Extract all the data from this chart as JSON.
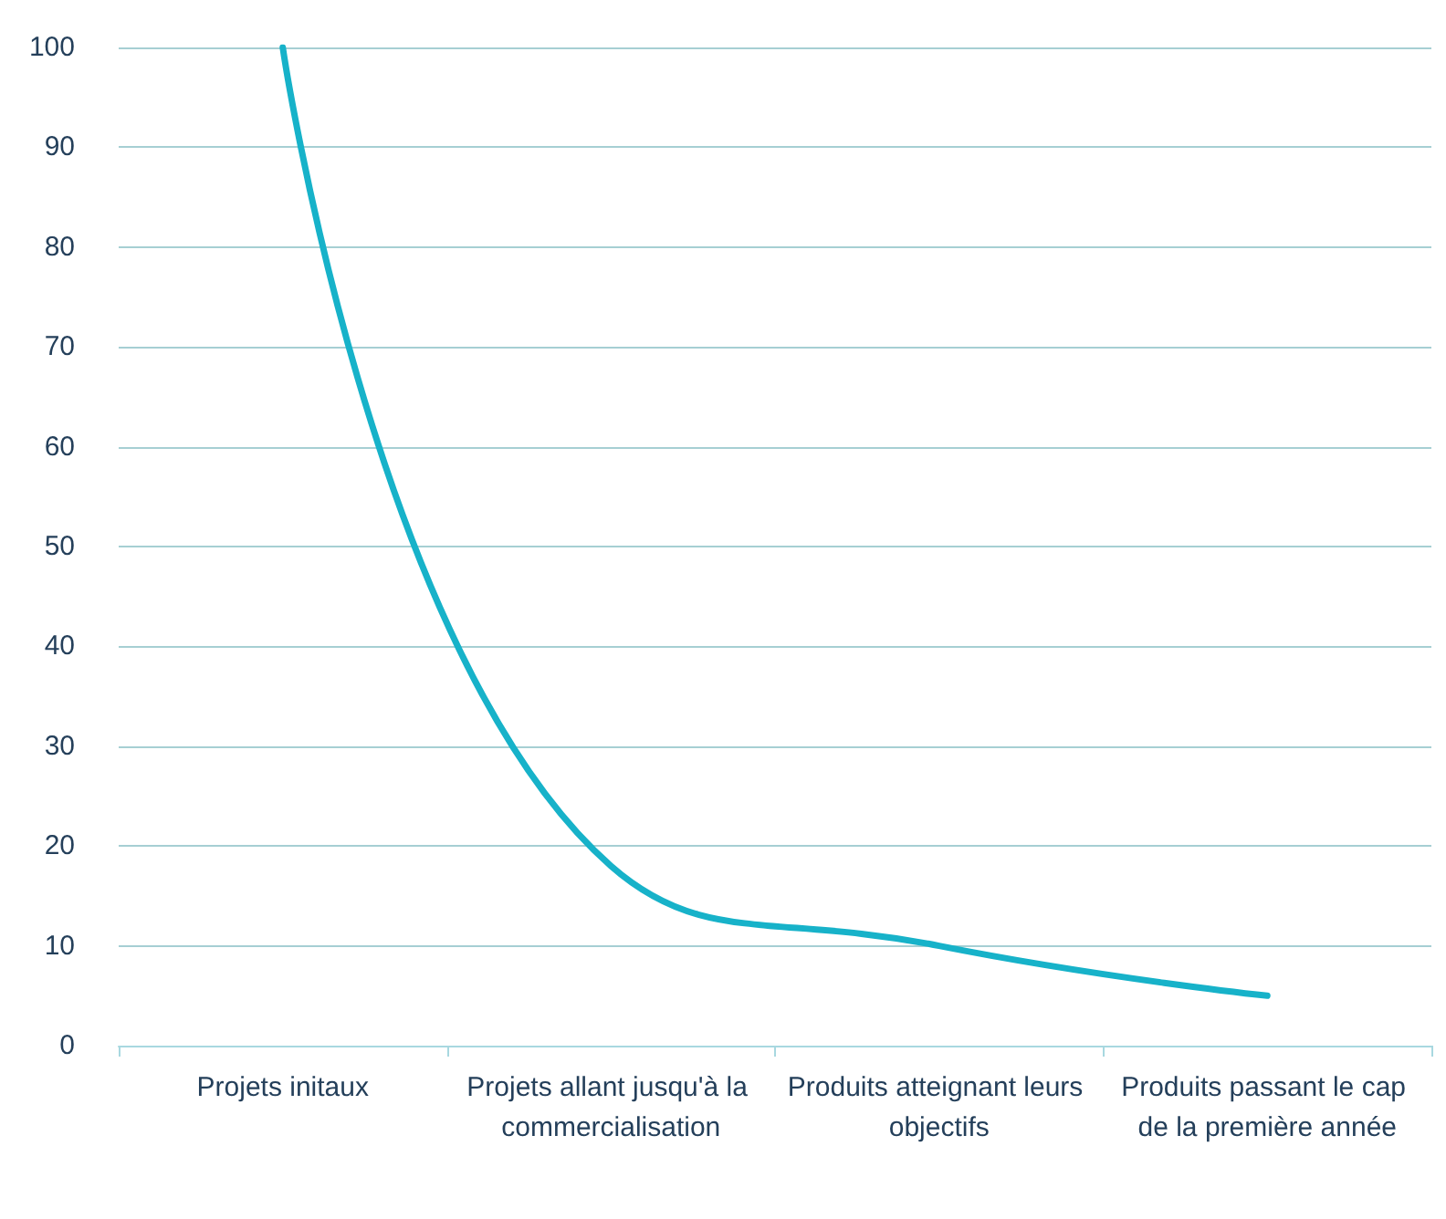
{
  "chart_data": {
    "type": "line",
    "categories": [
      "Projets initaux",
      "Projets allant jusqu'à la commercialisation",
      "Produits atteignant leurs objectifs",
      "Produits passant le cap de la première année"
    ],
    "series": [
      {
        "color": "#17b2c9",
        "values": [
          100,
          18,
          10,
          5
        ]
      }
    ],
    "ylim": [
      0,
      100
    ],
    "yticks": [
      0,
      10,
      20,
      30,
      40,
      50,
      60,
      70,
      80,
      90,
      100
    ],
    "grid": "y",
    "marker": "none",
    "line_style": "solid"
  }
}
